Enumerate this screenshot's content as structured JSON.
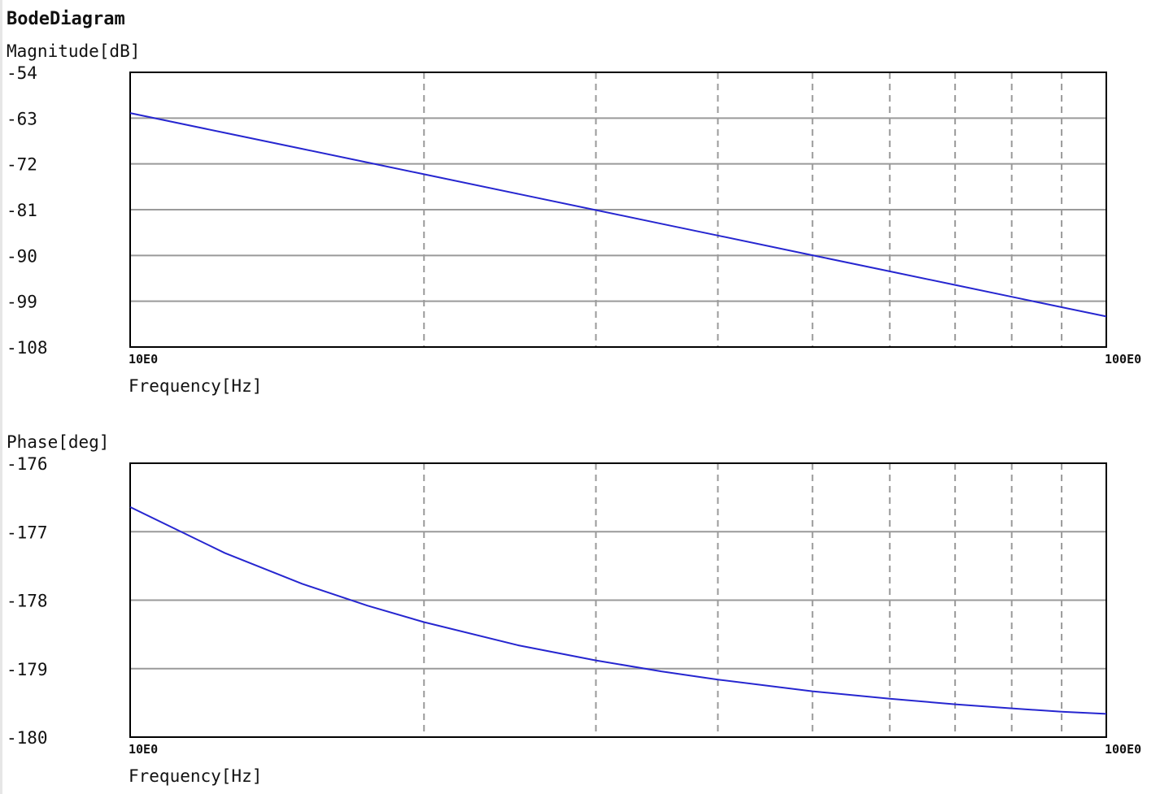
{
  "title": "BodeDiagram",
  "chart_data": [
    {
      "type": "line",
      "ylabel": "Magnitude[dB]",
      "xlabel": "Frequency[Hz]",
      "log_x": true,
      "x": [
        10,
        12.5,
        15,
        17.5,
        20,
        25,
        30,
        35,
        40,
        50,
        60,
        70,
        80,
        90,
        100
      ],
      "values": [
        -62,
        -65.88,
        -69.04,
        -71.72,
        -74.04,
        -77.92,
        -81.08,
        -83.76,
        -86.08,
        -89.96,
        -93.13,
        -95.8,
        -98.12,
        -100.17,
        -102
      ],
      "color": "#2626d0",
      "xlim": [
        10,
        100
      ],
      "xticks": [
        {
          "value": 10,
          "label": "10E0"
        },
        {
          "value": 100,
          "label": "100E0"
        }
      ],
      "xminor": [
        20,
        30,
        40,
        50,
        60,
        70,
        80,
        90
      ],
      "ylim": [
        -108,
        -54
      ],
      "yticks": [
        -54,
        -63,
        -72,
        -81,
        -90,
        -99,
        -108
      ],
      "grid": true
    },
    {
      "type": "line",
      "ylabel": "Phase[deg]",
      "xlabel": "Frequency[Hz]",
      "log_x": true,
      "x": [
        10,
        12.5,
        15,
        17.5,
        20,
        25,
        30,
        35,
        40,
        50,
        60,
        70,
        80,
        90,
        100
      ],
      "values": [
        -176.64,
        -177.31,
        -177.76,
        -178.08,
        -178.32,
        -178.66,
        -178.88,
        -179.04,
        -179.16,
        -179.33,
        -179.44,
        -179.52,
        -179.58,
        -179.63,
        -179.66
      ],
      "color": "#2626d0",
      "xlim": [
        10,
        100
      ],
      "xticks": [
        {
          "value": 10,
          "label": "10E0"
        },
        {
          "value": 100,
          "label": "100E0"
        }
      ],
      "xminor": [
        20,
        30,
        40,
        50,
        60,
        70,
        80,
        90
      ],
      "ylim": [
        -180,
        -176
      ],
      "yticks": [
        -176,
        -177,
        -178,
        -179,
        -180
      ],
      "grid": true
    }
  ]
}
